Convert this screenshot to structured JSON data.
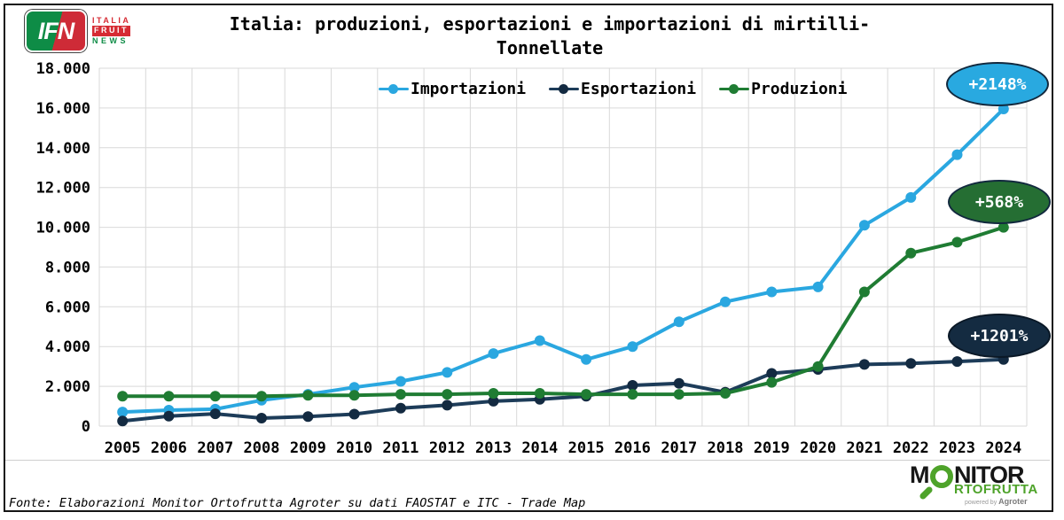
{
  "brand": {
    "ifn": "IFN",
    "italia": "ITALIA",
    "fruit": "FRUIT",
    "news": "NEWS"
  },
  "title": {
    "line1": "Italia: produzioni, esportazioni e importazioni di mirtilli-",
    "line2": "Tonnellate"
  },
  "legend": [
    {
      "label": "Importazioni",
      "color": "#2aa7e0"
    },
    {
      "label": "Esportazioni",
      "color": "#1d3c59"
    },
    {
      "label": "Produzioni",
      "color": "#1f7c33"
    }
  ],
  "badges": [
    {
      "label": "+2148%",
      "series": "Importazioni",
      "color": "#29a9e0"
    },
    {
      "label": "+568%",
      "series": "Produzioni",
      "color": "#256e33"
    },
    {
      "label": "+1201%",
      "series": "Esportazioni",
      "color": "#142b41"
    }
  ],
  "chart_data": {
    "type": "line",
    "title": "Italia: produzioni, esportazioni e importazioni di mirtilli - Tonnellate",
    "categories": [
      "2005",
      "2006",
      "2007",
      "2008",
      "2009",
      "2010",
      "2011",
      "2012",
      "2013",
      "2014",
      "2015",
      "2016",
      "2017",
      "2018",
      "2019",
      "2020",
      "2021",
      "2022",
      "2023",
      "2024"
    ],
    "series": [
      {
        "name": "Importazioni",
        "color": "#2aa7e0",
        "dot_color": "#2aa7e0",
        "values": [
          710,
          800,
          850,
          1300,
          1600,
          1950,
          2250,
          2700,
          3650,
          4300,
          3350,
          4000,
          5250,
          6250,
          6750,
          7000,
          10100,
          11500,
          13650,
          15950
        ]
      },
      {
        "name": "Esportazioni",
        "color": "#1d3c59",
        "dot_color": "#132a41",
        "values": [
          260,
          500,
          620,
          400,
          480,
          600,
          900,
          1050,
          1250,
          1350,
          1500,
          2050,
          2150,
          1700,
          2650,
          2850,
          3100,
          3150,
          3250,
          3350
        ]
      },
      {
        "name": "Produzioni",
        "color": "#1f7c33",
        "dot_color": "#1f7c33",
        "values": [
          1500,
          1500,
          1500,
          1500,
          1550,
          1550,
          1600,
          1600,
          1650,
          1650,
          1600,
          1600,
          1600,
          1650,
          2200,
          3000,
          6750,
          8700,
          9250,
          10000
        ]
      }
    ],
    "ylim": [
      0,
      18000
    ],
    "ytick_step": 2000,
    "ytick_labels": [
      "0",
      "2.000",
      "4.000",
      "6.000",
      "8.000",
      "10.000",
      "12.000",
      "14.000",
      "16.000",
      "18.000"
    ],
    "grid": true,
    "legend_position": "top-center",
    "annotations": [
      {
        "text": "+2148%",
        "series": "Importazioni"
      },
      {
        "text": "+568%",
        "series": "Produzioni"
      },
      {
        "text": "+1201%",
        "series": "Esportazioni"
      }
    ]
  },
  "footer": {
    "source": "Fonte: Elaborazioni Monitor Ortofrutta Agroter su dati FAOSTAT e ITC - Trade Map"
  },
  "monitor_logo": {
    "part1": "M",
    "part2": "NITOR",
    "line2": "RTOFRUTTA",
    "powered": "powered by",
    "agroter": "Agroter"
  }
}
